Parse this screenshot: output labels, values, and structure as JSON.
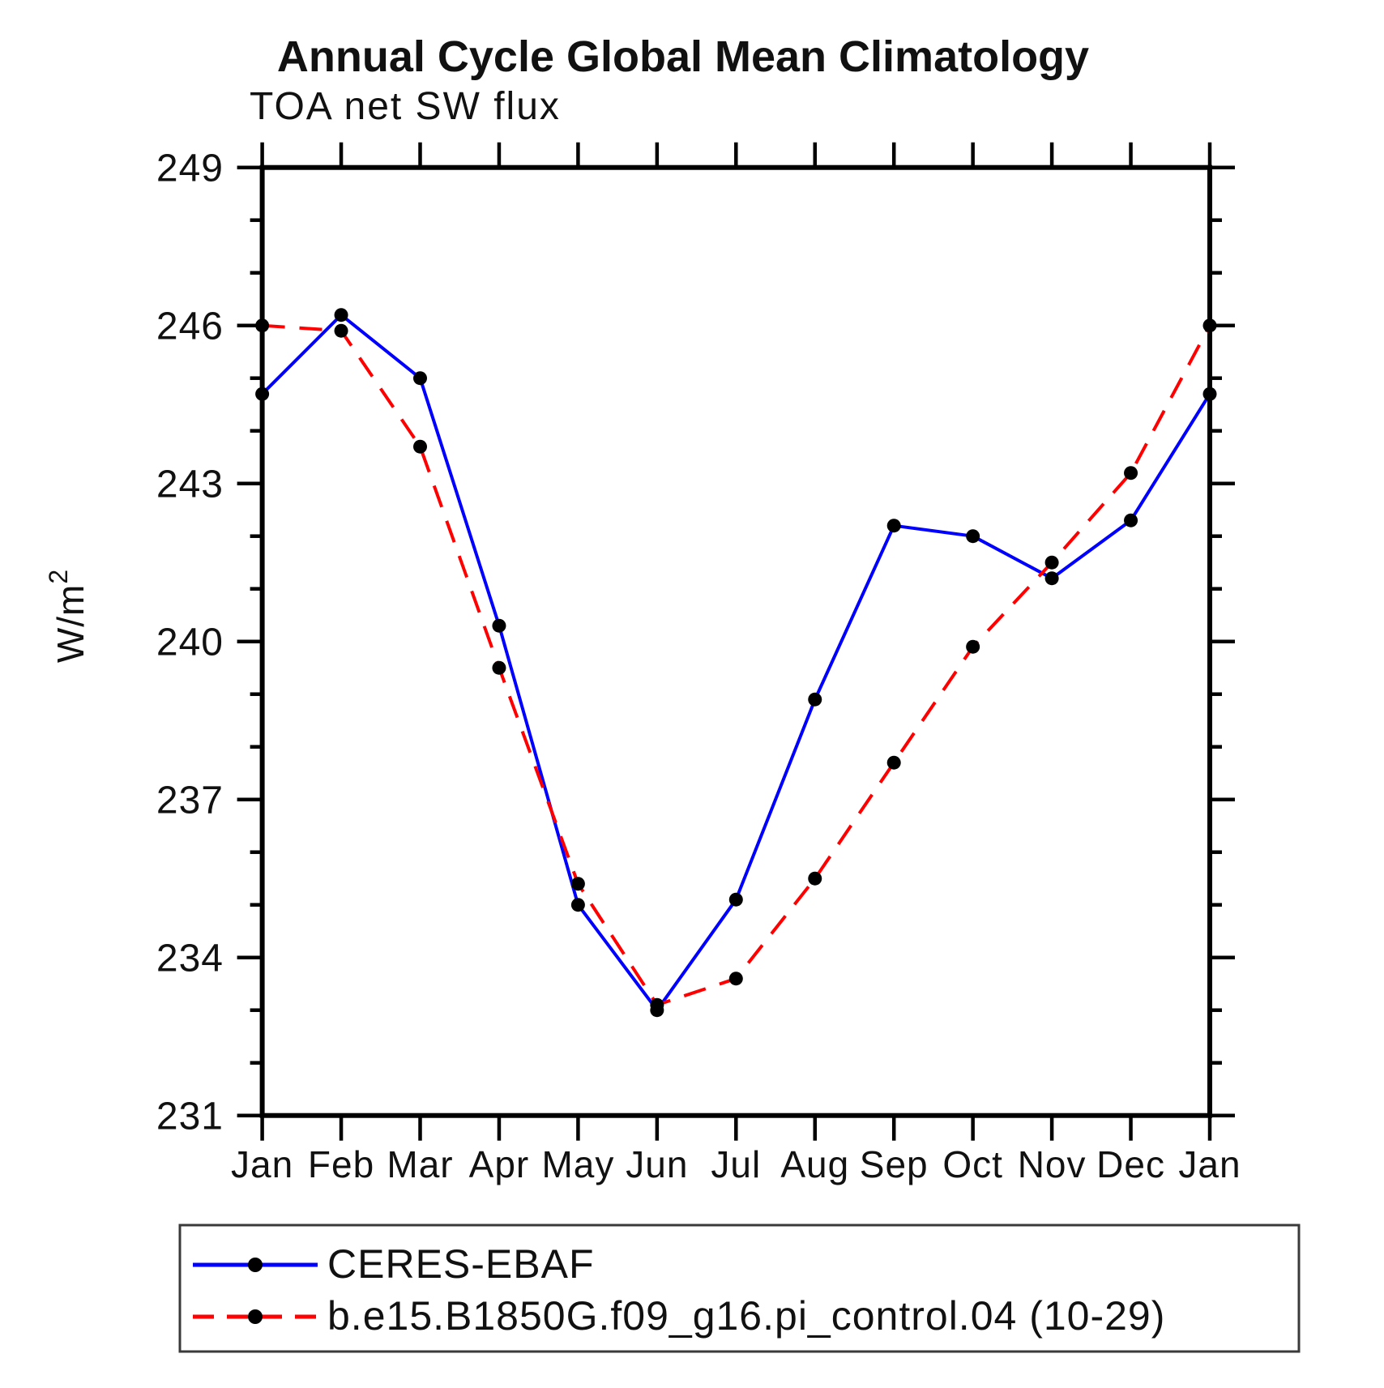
{
  "title": "Annual Cycle Global Mean Climatology",
  "subtitle": "TOA net SW flux",
  "y_axis": {
    "label_base": "W/m",
    "label_exponent": "2",
    "major_ticks": [
      231,
      234,
      237,
      240,
      243,
      246,
      249
    ],
    "minor_step": 1,
    "ylim": [
      231,
      249
    ]
  },
  "x_axis": {
    "categories": [
      "Jan",
      "Feb",
      "Mar",
      "Apr",
      "May",
      "Jun",
      "Jul",
      "Aug",
      "Sep",
      "Oct",
      "Nov",
      "Dec",
      "Jan"
    ]
  },
  "chart_data": {
    "type": "line",
    "title": "Annual Cycle Global Mean Climatology",
    "subtitle": "TOA net SW flux",
    "xlabel": "",
    "ylabel": "W/m2",
    "ylim": [
      231,
      249
    ],
    "grid": false,
    "legend_position": "bottom",
    "categories": [
      "Jan",
      "Feb",
      "Mar",
      "Apr",
      "May",
      "Jun",
      "Jul",
      "Aug",
      "Sep",
      "Oct",
      "Nov",
      "Dec",
      "Jan"
    ],
    "series": [
      {
        "name": "CERES-EBAF",
        "color": "#0000ff",
        "line_style": "solid",
        "marker": "circle",
        "marker_color": "#000000",
        "values": [
          244.7,
          246.2,
          245.0,
          240.3,
          235.0,
          233.0,
          235.1,
          238.9,
          242.2,
          242.0,
          241.2,
          242.3,
          244.7
        ]
      },
      {
        "name": "b.e15.B1850G.f09_g16.pi_control.04 (10-29)",
        "color": "#ff0000",
        "line_style": "dashed",
        "marker": "circle",
        "marker_color": "#000000",
        "values": [
          246.0,
          245.9,
          243.7,
          239.5,
          235.4,
          233.1,
          233.6,
          235.5,
          237.7,
          239.9,
          241.5,
          243.2,
          246.0
        ]
      }
    ]
  },
  "colors": {
    "axis": "#000000",
    "text": "#111111",
    "marker": "#000000",
    "legend_border": "#3a3a3a"
  }
}
